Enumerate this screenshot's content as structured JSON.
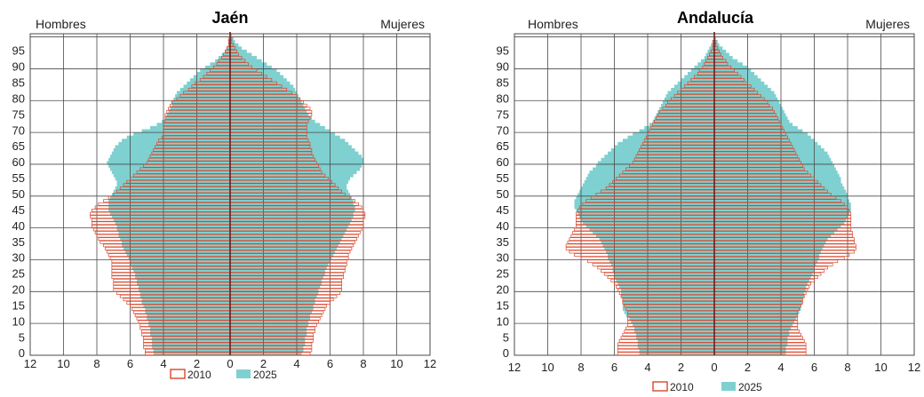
{
  "colors": {
    "c2010": "#d9472b",
    "c2025": "#7fd0d0",
    "grid": "#4a4a4a",
    "axis": "#6b1d1d"
  },
  "chart_data": [
    {
      "type": "population-pyramid",
      "title": "Jaén",
      "left_label": "Hombres",
      "right_label": "Mujeres",
      "xlim": [
        -12,
        12
      ],
      "x_ticks": [
        "12",
        "10",
        "8",
        "6",
        "4",
        "2",
        "0",
        "2",
        "4",
        "6",
        "8",
        "10",
        "12"
      ],
      "y_ticks": [
        "0",
        "5",
        "10",
        "15",
        "20",
        "25",
        "30",
        "35",
        "40",
        "45",
        "50",
        "55",
        "60",
        "65",
        "70",
        "75",
        "80",
        "85",
        "90",
        "95"
      ],
      "ages": [
        0,
        1,
        2,
        3,
        4,
        5,
        6,
        7,
        8,
        9,
        10,
        11,
        12,
        13,
        14,
        15,
        16,
        17,
        18,
        19,
        20,
        21,
        22,
        23,
        24,
        25,
        26,
        27,
        28,
        29,
        30,
        31,
        32,
        33,
        34,
        35,
        36,
        37,
        38,
        39,
        40,
        41,
        42,
        43,
        44,
        45,
        46,
        47,
        48,
        49,
        50,
        51,
        52,
        53,
        54,
        55,
        56,
        57,
        58,
        59,
        60,
        61,
        62,
        63,
        64,
        65,
        66,
        67,
        68,
        69,
        70,
        71,
        72,
        73,
        74,
        75,
        76,
        77,
        78,
        79,
        80,
        81,
        82,
        83,
        84,
        85,
        86,
        87,
        88,
        89,
        90,
        91,
        92,
        93,
        94,
        95,
        96,
        97,
        98,
        99,
        100
      ],
      "series": [
        {
          "name": "2010",
          "men": [
            5.1,
            5.1,
            5.2,
            5.2,
            5.2,
            5.2,
            5.3,
            5.3,
            5.4,
            5.4,
            5.5,
            5.6,
            5.7,
            5.8,
            5.9,
            6.0,
            6.2,
            6.4,
            6.6,
            6.8,
            7.0,
            7.0,
            7.0,
            7.0,
            7.1,
            7.1,
            7.1,
            7.1,
            7.1,
            7.1,
            7.2,
            7.3,
            7.4,
            7.5,
            7.6,
            7.8,
            7.9,
            8.0,
            8.1,
            8.2,
            8.3,
            8.3,
            8.3,
            8.4,
            8.4,
            8.3,
            8.1,
            7.9,
            7.6,
            7.3,
            7.0,
            6.8,
            6.6,
            6.4,
            6.2,
            6.0,
            5.8,
            5.6,
            5.4,
            5.2,
            5.0,
            4.9,
            4.8,
            4.7,
            4.6,
            4.5,
            4.4,
            4.3,
            4.1,
            4.0,
            4.0,
            4.0,
            4.0,
            3.9,
            3.9,
            3.9,
            3.8,
            3.7,
            3.6,
            3.5,
            3.2,
            3.0,
            2.8,
            2.5,
            2.3,
            2.1,
            1.8,
            1.6,
            1.4,
            1.2,
            1.0,
            0.8,
            0.7,
            0.5,
            0.4,
            0.3,
            0.2,
            0.1,
            0.1,
            0.1,
            0.0
          ],
          "women": [
            4.8,
            4.9,
            4.9,
            4.9,
            5.0,
            5.0,
            5.0,
            5.1,
            5.1,
            5.2,
            5.3,
            5.4,
            5.5,
            5.6,
            5.7,
            5.8,
            6.0,
            6.2,
            6.4,
            6.6,
            6.7,
            6.7,
            6.7,
            6.7,
            6.8,
            6.8,
            6.9,
            6.9,
            7.0,
            7.0,
            7.1,
            7.1,
            7.2,
            7.3,
            7.4,
            7.5,
            7.6,
            7.7,
            7.8,
            7.9,
            8.0,
            8.0,
            8.0,
            8.1,
            8.1,
            8.0,
            7.9,
            7.7,
            7.5,
            7.2,
            6.9,
            6.7,
            6.5,
            6.3,
            6.1,
            5.9,
            5.7,
            5.5,
            5.4,
            5.3,
            5.2,
            5.1,
            5.0,
            4.9,
            4.9,
            4.8,
            4.8,
            4.7,
            4.6,
            4.6,
            4.6,
            4.6,
            4.6,
            4.7,
            4.8,
            4.9,
            4.9,
            4.8,
            4.6,
            4.4,
            4.2,
            4.0,
            3.7,
            3.4,
            3.1,
            2.8,
            2.5,
            2.2,
            1.9,
            1.6,
            1.3,
            1.1,
            0.9,
            0.7,
            0.5,
            0.4,
            0.3,
            0.2,
            0.1,
            0.1,
            0.0
          ]
        },
        {
          "name": "2025",
          "men": [
            4.6,
            4.6,
            4.7,
            4.7,
            4.7,
            4.7,
            4.8,
            4.8,
            4.8,
            4.9,
            4.9,
            5.0,
            5.0,
            5.1,
            5.1,
            5.2,
            5.3,
            5.3,
            5.4,
            5.4,
            5.5,
            5.5,
            5.6,
            5.6,
            5.7,
            5.7,
            5.8,
            5.9,
            6.0,
            6.0,
            6.1,
            6.2,
            6.3,
            6.4,
            6.5,
            6.5,
            6.6,
            6.7,
            6.7,
            6.8,
            6.8,
            6.9,
            7.0,
            7.1,
            7.2,
            7.3,
            7.3,
            7.3,
            7.3,
            7.2,
            7.1,
            7.0,
            6.9,
            6.8,
            6.8,
            6.9,
            7.0,
            7.1,
            7.2,
            7.3,
            7.4,
            7.3,
            7.2,
            7.1,
            7.0,
            6.9,
            6.7,
            6.5,
            6.2,
            5.8,
            5.3,
            4.8,
            4.4,
            4.1,
            3.9,
            3.8,
            3.7,
            3.6,
            3.5,
            3.5,
            3.4,
            3.3,
            3.2,
            3.0,
            2.8,
            2.6,
            2.4,
            2.2,
            2.0,
            1.8,
            1.5,
            1.2,
            0.9,
            0.7,
            0.5,
            0.3,
            0.2,
            0.1,
            0.1,
            0.0,
            0.0
          ],
          "women": [
            4.3,
            4.4,
            4.4,
            4.5,
            4.5,
            4.5,
            4.6,
            4.6,
            4.6,
            4.7,
            4.7,
            4.8,
            4.8,
            4.9,
            5.0,
            5.0,
            5.1,
            5.1,
            5.2,
            5.3,
            5.3,
            5.4,
            5.5,
            5.5,
            5.6,
            5.7,
            5.7,
            5.8,
            5.9,
            6.0,
            6.1,
            6.2,
            6.3,
            6.4,
            6.5,
            6.6,
            6.7,
            6.8,
            6.9,
            7.0,
            7.1,
            7.2,
            7.3,
            7.4,
            7.4,
            7.5,
            7.5,
            7.4,
            7.4,
            7.3,
            7.2,
            7.1,
            7.0,
            7.0,
            7.1,
            7.2,
            7.4,
            7.6,
            7.8,
            7.9,
            8.0,
            8.0,
            7.9,
            7.7,
            7.5,
            7.3,
            7.1,
            6.9,
            6.6,
            6.3,
            6.0,
            5.7,
            5.4,
            5.1,
            4.9,
            4.7,
            4.6,
            4.5,
            4.4,
            4.3,
            4.2,
            4.1,
            4.0,
            3.9,
            3.8,
            3.6,
            3.4,
            3.2,
            3.0,
            2.8,
            2.5,
            2.2,
            1.9,
            1.6,
            1.3,
            1.0,
            0.7,
            0.5,
            0.3,
            0.2,
            0.1
          ]
        }
      ],
      "legend": [
        "2010",
        "2025"
      ]
    },
    {
      "type": "population-pyramid",
      "title": "Andalucía",
      "left_label": "Hombres",
      "right_label": "Mujeres",
      "xlim": [
        -12,
        12
      ],
      "x_ticks": [
        "12",
        "10",
        "8",
        "6",
        "4",
        "2",
        "0",
        "2",
        "4",
        "6",
        "8",
        "10",
        "12"
      ],
      "y_ticks": [
        "0",
        "5",
        "10",
        "15",
        "20",
        "25",
        "30",
        "35",
        "40",
        "45",
        "50",
        "55",
        "60",
        "65",
        "70",
        "75",
        "80",
        "85",
        "90",
        "95"
      ],
      "ages": [
        0,
        1,
        2,
        3,
        4,
        5,
        6,
        7,
        8,
        9,
        10,
        11,
        12,
        13,
        14,
        15,
        16,
        17,
        18,
        19,
        20,
        21,
        22,
        23,
        24,
        25,
        26,
        27,
        28,
        29,
        30,
        31,
        32,
        33,
        34,
        35,
        36,
        37,
        38,
        39,
        40,
        41,
        42,
        43,
        44,
        45,
        46,
        47,
        48,
        49,
        50,
        51,
        52,
        53,
        54,
        55,
        56,
        57,
        58,
        59,
        60,
        61,
        62,
        63,
        64,
        65,
        66,
        67,
        68,
        69,
        70,
        71,
        72,
        73,
        74,
        75,
        76,
        77,
        78,
        79,
        80,
        81,
        82,
        83,
        84,
        85,
        86,
        87,
        88,
        89,
        90,
        91,
        92,
        93,
        94,
        95,
        96,
        97,
        98,
        99,
        100
      ],
      "series": [
        {
          "name": "2010",
          "men": [
            5.8,
            5.8,
            5.8,
            5.8,
            5.7,
            5.6,
            5.5,
            5.4,
            5.3,
            5.2,
            5.2,
            5.2,
            5.2,
            5.2,
            5.3,
            5.4,
            5.5,
            5.5,
            5.6,
            5.7,
            5.8,
            5.9,
            6.0,
            6.2,
            6.4,
            6.6,
            6.8,
            7.0,
            7.3,
            7.6,
            8.0,
            8.4,
            8.7,
            8.9,
            8.9,
            8.8,
            8.7,
            8.6,
            8.5,
            8.4,
            8.3,
            8.3,
            8.3,
            8.3,
            8.3,
            8.2,
            8.1,
            7.9,
            7.7,
            7.4,
            7.1,
            6.8,
            6.5,
            6.3,
            6.1,
            5.9,
            5.7,
            5.5,
            5.3,
            5.1,
            4.9,
            4.8,
            4.7,
            4.6,
            4.5,
            4.4,
            4.3,
            4.2,
            4.1,
            4.0,
            3.9,
            3.8,
            3.7,
            3.6,
            3.5,
            3.4,
            3.3,
            3.1,
            2.9,
            2.8,
            2.6,
            2.4,
            2.2,
            2.0,
            1.8,
            1.6,
            1.4,
            1.2,
            1.0,
            0.9,
            0.7,
            0.6,
            0.5,
            0.4,
            0.3,
            0.2,
            0.1,
            0.1,
            0.1,
            0.0,
            0.0
          ],
          "women": [
            5.5,
            5.5,
            5.5,
            5.5,
            5.4,
            5.3,
            5.2,
            5.1,
            5.0,
            5.0,
            5.0,
            5.0,
            5.0,
            5.0,
            5.1,
            5.2,
            5.3,
            5.3,
            5.4,
            5.5,
            5.6,
            5.7,
            5.8,
            6.0,
            6.2,
            6.4,
            6.6,
            6.8,
            7.1,
            7.4,
            7.8,
            8.1,
            8.4,
            8.5,
            8.5,
            8.4,
            8.4,
            8.3,
            8.3,
            8.2,
            8.2,
            8.2,
            8.2,
            8.2,
            8.2,
            8.1,
            8.0,
            7.8,
            7.6,
            7.3,
            7.0,
            6.8,
            6.6,
            6.4,
            6.2,
            6.0,
            5.8,
            5.6,
            5.4,
            5.3,
            5.2,
            5.1,
            5.0,
            4.9,
            4.8,
            4.7,
            4.6,
            4.5,
            4.4,
            4.3,
            4.2,
            4.1,
            4.0,
            3.9,
            3.8,
            3.7,
            3.6,
            3.5,
            3.3,
            3.2,
            3.0,
            2.8,
            2.6,
            2.4,
            2.2,
            2.0,
            1.8,
            1.6,
            1.4,
            1.2,
            1.0,
            0.8,
            0.7,
            0.5,
            0.4,
            0.3,
            0.2,
            0.1,
            0.1,
            0.0,
            0.0
          ]
        },
        {
          "name": "2025",
          "men": [
            4.5,
            4.5,
            4.6,
            4.6,
            4.6,
            4.7,
            4.7,
            4.8,
            4.8,
            4.9,
            5.0,
            5.1,
            5.3,
            5.4,
            5.5,
            5.5,
            5.5,
            5.5,
            5.6,
            5.6,
            5.6,
            5.7,
            5.8,
            5.9,
            6.0,
            6.0,
            6.1,
            6.1,
            6.2,
            6.3,
            6.4,
            6.4,
            6.5,
            6.6,
            6.7,
            6.8,
            6.9,
            7.1,
            7.3,
            7.5,
            7.7,
            7.9,
            8.0,
            8.1,
            8.2,
            8.3,
            8.4,
            8.4,
            8.4,
            8.3,
            8.2,
            8.1,
            8.0,
            7.9,
            7.8,
            7.7,
            7.6,
            7.5,
            7.3,
            7.1,
            7.0,
            6.8,
            6.6,
            6.4,
            6.2,
            6.0,
            5.8,
            5.5,
            5.2,
            4.9,
            4.5,
            4.2,
            3.9,
            3.7,
            3.6,
            3.5,
            3.4,
            3.3,
            3.2,
            3.1,
            3.0,
            2.9,
            2.8,
            2.6,
            2.4,
            2.2,
            2.0,
            1.8,
            1.6,
            1.4,
            1.2,
            1.0,
            0.8,
            0.6,
            0.5,
            0.4,
            0.3,
            0.2,
            0.1,
            0.0,
            0.0
          ],
          "women": [
            4.3,
            4.3,
            4.3,
            4.4,
            4.4,
            4.4,
            4.5,
            4.5,
            4.6,
            4.7,
            4.8,
            4.9,
            5.0,
            5.1,
            5.2,
            5.2,
            5.3,
            5.3,
            5.4,
            5.4,
            5.5,
            5.5,
            5.6,
            5.7,
            5.8,
            5.9,
            6.0,
            6.0,
            6.1,
            6.2,
            6.3,
            6.3,
            6.4,
            6.5,
            6.6,
            6.7,
            6.8,
            7.0,
            7.2,
            7.4,
            7.6,
            7.8,
            7.9,
            8.0,
            8.1,
            8.2,
            8.2,
            8.2,
            8.1,
            8.0,
            8.0,
            7.9,
            7.8,
            7.7,
            7.6,
            7.6,
            7.5,
            7.4,
            7.3,
            7.2,
            7.1,
            7.0,
            6.9,
            6.8,
            6.6,
            6.4,
            6.2,
            6.0,
            5.8,
            5.6,
            5.3,
            5.0,
            4.7,
            4.5,
            4.4,
            4.3,
            4.2,
            4.1,
            4.0,
            3.9,
            3.8,
            3.7,
            3.6,
            3.4,
            3.2,
            3.0,
            2.8,
            2.6,
            2.4,
            2.2,
            2.0,
            1.7,
            1.4,
            1.1,
            0.9,
            0.7,
            0.5,
            0.3,
            0.2,
            0.1,
            0.0
          ]
        }
      ],
      "legend": [
        "2010",
        "2025"
      ]
    }
  ]
}
